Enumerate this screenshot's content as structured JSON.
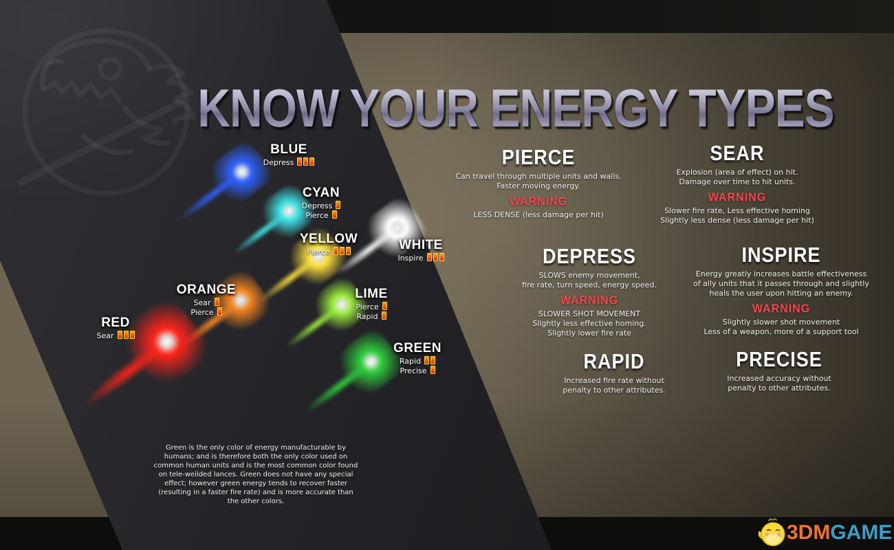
{
  "title": "KNOW YOUR ENERGY TYPES",
  "colors": {
    "warning": "#f4464e",
    "pip_border": "#ffd23f",
    "pip_top": "#ff9a22",
    "pip_bottom": "#d92b05",
    "brand_3dm": "#ee7135",
    "brand_game": "#3e9ec9"
  },
  "energy_colors": [
    {
      "key": "blue",
      "name": "BLUE",
      "color": "#2f62ff",
      "traits": [
        {
          "label": "Depress",
          "pips": 3
        }
      ]
    },
    {
      "key": "cyan",
      "name": "CYAN",
      "color": "#3fe8ea",
      "traits": [
        {
          "label": "Depress",
          "pips": 1
        },
        {
          "label": "Pierce",
          "pips": 1
        }
      ]
    },
    {
      "key": "yellow",
      "name": "YELLOW",
      "color": "#ffe23c",
      "traits": [
        {
          "label": "Pierce",
          "pips": 3
        }
      ]
    },
    {
      "key": "white",
      "name": "WHITE",
      "color": "#ffffff",
      "traits": [
        {
          "label": "Inspire",
          "pips": 3
        }
      ]
    },
    {
      "key": "orange",
      "name": "ORANGE",
      "color": "#ff8b20",
      "traits": [
        {
          "label": "Sear",
          "pips": 1
        },
        {
          "label": "Pierce",
          "pips": 1
        }
      ]
    },
    {
      "key": "lime",
      "name": "LIME",
      "color": "#9df03e",
      "traits": [
        {
          "label": "Pierce",
          "pips": 1
        },
        {
          "label": "Rapid",
          "pips": 1
        }
      ]
    },
    {
      "key": "red",
      "name": "RED",
      "color": "#ff241a",
      "traits": [
        {
          "label": "Sear",
          "pips": 3
        }
      ]
    },
    {
      "key": "green",
      "name": "GREEN",
      "color": "#2ed03c",
      "traits": [
        {
          "label": "Rapid",
          "pips": 2
        },
        {
          "label": "Precise",
          "pips": 1
        }
      ]
    }
  ],
  "sections": [
    {
      "key": "pierce",
      "name": "PIERCE",
      "description": [
        "Can travel through multiple units and walls.",
        "Faster moving energy."
      ],
      "warning_label": "WARNING",
      "warnings": [
        "LESS DENSE (less damage per hit)"
      ]
    },
    {
      "key": "sear",
      "name": "SEAR",
      "description": [
        "Explosion (area of effect) on hit.",
        "Damage over time to hit units."
      ],
      "warning_label": "WARNING",
      "warnings": [
        "Slower fire rate, Less effective homing",
        "Slightly less dense (less damage per hit)"
      ]
    },
    {
      "key": "depress",
      "name": "DEPRESS",
      "description": [
        "SLOWS enemy movement,",
        "fire rate, turn speed, energy speed."
      ],
      "warning_label": "WARNING",
      "warnings": [
        "SLOWER SHOT MOVEMENT",
        "Slightly less effective homing.",
        "Slightly lower fire rate"
      ]
    },
    {
      "key": "inspire",
      "name": "INSPIRE",
      "description": [
        "Energy greatly increases battle effectiveness",
        "of ally units that it passes through and slightly",
        "heals the user upon hitting an enemy."
      ],
      "warning_label": "WARNING",
      "warnings": [
        "Slightly slower shot movement",
        "Less of a weapon, more of a support tool"
      ]
    },
    {
      "key": "rapid",
      "name": "RAPID",
      "description": [
        "Increased fire rate without",
        "penalty to other attributes."
      ],
      "warning_label": null,
      "warnings": []
    },
    {
      "key": "precise",
      "name": "PRECISE",
      "description": [
        "Increased accuracy without",
        "penalty to other attributes."
      ],
      "warning_label": null,
      "warnings": []
    }
  ],
  "footnote": "Green is the only color of energy manufacturable by humans; and is therefore both the only color used on common human units and is the most common color found on tele-weilded lances. Green does not have any special effect; however green energy tends to recover faster (resulting in a faster fire rate) and is more accurate than the other colors.",
  "watermark": {
    "brand_3dm": "3DM",
    "brand_game": "GAME"
  }
}
